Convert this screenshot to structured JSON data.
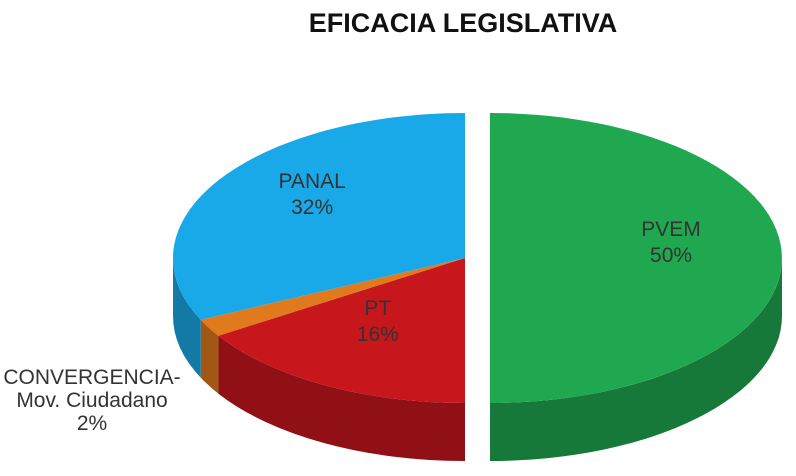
{
  "chart_data": {
    "type": "pie",
    "title": "EFICACIA LEGISLATIVA",
    "categories": [
      "PVEM",
      "PT",
      "CONVERGENCIA- Mov. Ciudadano",
      "PANAL"
    ],
    "values": [
      50,
      16,
      2,
      32
    ],
    "value_labels": [
      "50%",
      "16%",
      "2%",
      "32%"
    ],
    "colors": [
      "#1fa84f",
      "#c8161d",
      "#e07a1c",
      "#1aa9e8"
    ]
  }
}
